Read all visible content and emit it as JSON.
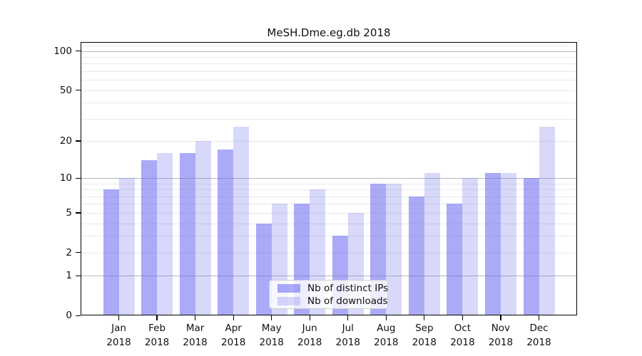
{
  "chart_data": {
    "type": "bar",
    "title": "MeSH.Dme.eg.db 2018",
    "scale": "log1p",
    "categories": [
      "Jan",
      "Feb",
      "Mar",
      "Apr",
      "May",
      "Jun",
      "Jul",
      "Aug",
      "Sep",
      "Oct",
      "Nov",
      "Dec"
    ],
    "year_label": "2018",
    "series": [
      {
        "name": "Nb of distinct IPs",
        "color": "rgba(100,100,240,0.55)",
        "color_hex": "#a9a9f6",
        "values": [
          8,
          14,
          16,
          17,
          4,
          6,
          3,
          9,
          7,
          6,
          11,
          10
        ]
      },
      {
        "name": "Nb of downloads",
        "color": "rgba(100,100,240,0.25)",
        "color_hex": "#d8d8f9",
        "values": [
          10,
          16,
          20,
          26,
          6,
          8,
          5,
          9,
          11,
          10,
          11,
          26
        ]
      }
    ],
    "y_tick_values": [
      0,
      1,
      2,
      5,
      10,
      20,
      50,
      100
    ],
    "y_major_gridlines": [
      1,
      10,
      100
    ],
    "y_minor_gridlines": [
      2,
      3,
      4,
      5,
      6,
      7,
      8,
      9,
      20,
      30,
      40,
      50,
      60,
      70,
      80,
      90,
      110
    ],
    "ylim": [
      0,
      117
    ],
    "grid": true,
    "legend_position": "bottom-center",
    "grid_major_color": "#b8b8b8",
    "grid_minor_color": "#e9e9e9"
  }
}
